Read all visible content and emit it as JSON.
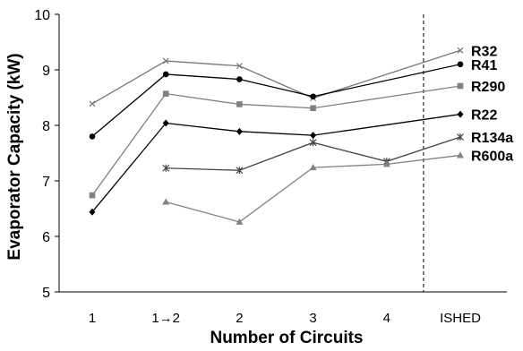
{
  "chart_data": {
    "type": "line",
    "xlabel": "Number of Circuits",
    "ylabel": "Evaporator Capacity (kW)",
    "categories": [
      "1",
      "1→2",
      "2",
      "3",
      "4",
      "ISHED"
    ],
    "ylim": [
      5,
      10
    ],
    "yticks": [
      5,
      6,
      7,
      8,
      9,
      10
    ],
    "grid": false,
    "legend": "series labels at right end of lines",
    "reference_line": {
      "between": [
        "4",
        "ISHED"
      ],
      "style": "dashed vertical"
    },
    "series": [
      {
        "name": "R32",
        "marker": "x",
        "color": "#777777",
        "values": [
          8.39,
          9.16,
          9.07,
          8.49,
          null,
          9.35
        ]
      },
      {
        "name": "R41",
        "marker": "circle",
        "color": "#000000",
        "values": [
          7.8,
          8.92,
          8.83,
          8.52,
          null,
          9.1
        ]
      },
      {
        "name": "R290",
        "marker": "square",
        "color": "#808080",
        "values": [
          6.74,
          8.57,
          8.38,
          8.31,
          null,
          8.71
        ]
      },
      {
        "name": "R22",
        "marker": "diamond",
        "color": "#000000",
        "values": [
          6.44,
          8.04,
          7.89,
          7.82,
          null,
          8.2
        ]
      },
      {
        "name": "R134a",
        "marker": "asterisk",
        "color": "#444444",
        "values": [
          null,
          7.23,
          7.19,
          7.69,
          7.35,
          7.79
        ]
      },
      {
        "name": "R600a",
        "marker": "triangle",
        "color": "#808080",
        "values": [
          null,
          6.62,
          6.26,
          7.24,
          7.3,
          7.46
        ]
      }
    ]
  }
}
